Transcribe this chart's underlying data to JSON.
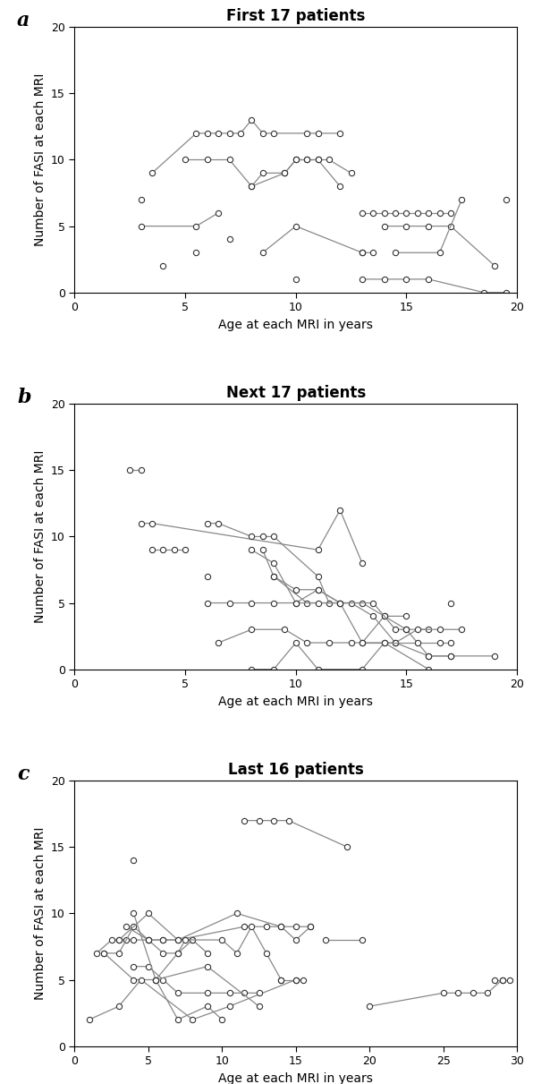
{
  "panel_a": {
    "title": "First 17 patients",
    "xlim": [
      0,
      20
    ],
    "ylim": [
      0,
      20
    ],
    "xticks": [
      0,
      5,
      10,
      15,
      20
    ],
    "yticks": [
      0,
      5,
      10,
      15,
      20
    ],
    "series": [
      {
        "x": [
          3.5,
          5.5,
          6.0,
          6.5,
          7.0,
          7.5,
          8.0,
          8.5,
          9.0,
          10.5,
          11.0,
          12.0
        ],
        "y": [
          9,
          12,
          12,
          12,
          12,
          12,
          13,
          12,
          12,
          12,
          12,
          12
        ]
      },
      {
        "x": [
          5.0,
          6.0,
          7.0,
          8.0,
          8.5,
          9.5,
          10.0,
          10.5,
          11.0,
          11.5,
          12.5
        ],
        "y": [
          10,
          10,
          10,
          8,
          9,
          9,
          10,
          10,
          10,
          10,
          9
        ]
      },
      {
        "x": [
          8.0,
          9.5,
          10.0,
          10.5,
          11.0,
          12.0
        ],
        "y": [
          8,
          9,
          10,
          10,
          10,
          8
        ]
      },
      {
        "x": [
          3.0,
          5.5,
          6.5
        ],
        "y": [
          5,
          5,
          6
        ]
      },
      {
        "x": [
          8.5,
          10.0,
          13.0,
          13.5
        ],
        "y": [
          3,
          5,
          3,
          3
        ]
      },
      {
        "x": [
          13.0,
          13.5,
          14.0,
          14.5,
          15.0,
          15.5,
          16.0,
          16.5,
          17.0
        ],
        "y": [
          6,
          6,
          6,
          6,
          6,
          6,
          6,
          6,
          6
        ]
      },
      {
        "x": [
          14.0,
          15.0,
          16.0,
          17.0,
          19.0
        ],
        "y": [
          5,
          5,
          5,
          5,
          2
        ]
      },
      {
        "x": [
          13.0,
          14.0,
          15.0,
          16.0,
          18.5,
          19.5
        ],
        "y": [
          1,
          1,
          1,
          1,
          0,
          0
        ]
      },
      {
        "x": [
          14.5,
          16.5,
          17.5
        ],
        "y": [
          3,
          3,
          7
        ]
      },
      {
        "x": [
          19.5
        ],
        "y": [
          7
        ]
      },
      {
        "x": [
          3.0
        ],
        "y": [
          7
        ]
      },
      {
        "x": [
          5.5
        ],
        "y": [
          3
        ]
      },
      {
        "x": [
          4.0
        ],
        "y": [
          2
        ]
      },
      {
        "x": [
          7.0
        ],
        "y": [
          4
        ]
      },
      {
        "x": [
          10.0
        ],
        "y": [
          1
        ]
      },
      {
        "x": [
          13.0
        ],
        "y": [
          3
        ]
      }
    ]
  },
  "panel_b": {
    "title": "Next 17 patients",
    "xlim": [
      0,
      20
    ],
    "ylim": [
      0,
      20
    ],
    "xticks": [
      0,
      5,
      10,
      15,
      20
    ],
    "yticks": [
      0,
      5,
      10,
      15,
      20
    ],
    "series": [
      {
        "x": [
          2.5,
          3.0
        ],
        "y": [
          15,
          15
        ]
      },
      {
        "x": [
          3.0,
          3.5,
          11.0,
          12.0,
          13.0
        ],
        "y": [
          11,
          11,
          9,
          12,
          8
        ]
      },
      {
        "x": [
          3.5,
          4.0,
          4.5,
          5.0
        ],
        "y": [
          9,
          9,
          9,
          9
        ]
      },
      {
        "x": [
          6.0,
          6.5,
          8.0,
          8.5,
          9.0,
          11.0,
          11.5
        ],
        "y": [
          11,
          11,
          10,
          10,
          10,
          7,
          5
        ]
      },
      {
        "x": [
          8.0,
          9.0,
          10.0,
          11.0,
          12.0,
          13.0,
          14.0,
          15.0
        ],
        "y": [
          9,
          8,
          5,
          6,
          5,
          5,
          4,
          4
        ]
      },
      {
        "x": [
          8.5,
          9.0,
          10.5,
          12.5,
          13.5,
          14.5,
          16.0,
          17.0
        ],
        "y": [
          9,
          7,
          5,
          5,
          4,
          2,
          1,
          1
        ]
      },
      {
        "x": [
          9.0,
          10.0,
          11.0,
          12.0,
          13.0,
          14.0,
          15.0,
          16.0,
          17.0,
          19.0
        ],
        "y": [
          7,
          6,
          6,
          5,
          2,
          4,
          3,
          1,
          1,
          1
        ]
      },
      {
        "x": [
          6.0,
          7.0,
          8.0,
          9.0,
          10.0,
          11.0,
          12.0,
          13.5,
          14.5,
          15.0,
          16.0
        ],
        "y": [
          5,
          5,
          5,
          5,
          5,
          5,
          5,
          5,
          3,
          3,
          3
        ]
      },
      {
        "x": [
          6.5,
          8.0,
          9.5,
          10.5,
          11.5,
          12.5,
          14.5,
          15.5,
          16.5,
          17.5
        ],
        "y": [
          2,
          3,
          3,
          2,
          2,
          2,
          2,
          3,
          3,
          3
        ]
      },
      {
        "x": [
          8.0,
          9.0,
          10.0,
          11.0,
          13.0,
          14.0,
          16.0
        ],
        "y": [
          0,
          0,
          2,
          0,
          0,
          2,
          0
        ]
      },
      {
        "x": [
          6.0
        ],
        "y": [
          7
        ]
      },
      {
        "x": [
          17.0
        ],
        "y": [
          5
        ]
      },
      {
        "x": [
          13.0,
          14.0,
          15.5,
          16.5,
          17.0
        ],
        "y": [
          2,
          2,
          2,
          2,
          2
        ]
      }
    ]
  },
  "panel_c": {
    "title": "Last 16 patients",
    "xlim": [
      0,
      30
    ],
    "ylim": [
      0,
      20
    ],
    "xticks": [
      0,
      5,
      10,
      15,
      20,
      25,
      30
    ],
    "yticks": [
      0,
      5,
      10,
      15,
      20
    ],
    "series": [
      {
        "x": [
          11.5,
          12.5,
          13.5,
          14.5,
          18.5
        ],
        "y": [
          17,
          17,
          17,
          17,
          15
        ]
      },
      {
        "x": [
          4.0
        ],
        "y": [
          14
        ]
      },
      {
        "x": [
          1.5,
          2.5,
          3.0,
          3.5,
          4.0,
          5.0,
          6.0,
          8.0
        ],
        "y": [
          7,
          8,
          8,
          8,
          8,
          8,
          8,
          8
        ]
      },
      {
        "x": [
          2.0,
          3.0,
          4.0,
          5.0,
          6.0,
          7.0,
          8.0,
          9.0
        ],
        "y": [
          7,
          7,
          9,
          8,
          7,
          7,
          8,
          7
        ]
      },
      {
        "x": [
          3.5,
          5.0,
          6.0,
          7.0,
          11.5,
          13.0,
          14.0,
          15.0,
          16.0
        ],
        "y": [
          9,
          8,
          8,
          8,
          9,
          9,
          9,
          9,
          9
        ]
      },
      {
        "x": [
          3.0,
          5.0,
          7.0,
          11.0,
          14.0,
          15.0,
          16.0
        ],
        "y": [
          8,
          10,
          8,
          10,
          9,
          8,
          9
        ]
      },
      {
        "x": [
          2.0,
          4.0,
          5.5,
          7.0,
          7.5,
          10.0,
          11.0,
          12.0,
          13.0,
          14.0
        ],
        "y": [
          7,
          5,
          5,
          7,
          8,
          8,
          7,
          9,
          7,
          5
        ]
      },
      {
        "x": [
          1.0,
          3.0,
          4.5,
          8.0,
          10.5,
          15.0,
          15.5
        ],
        "y": [
          2,
          3,
          5,
          2,
          3,
          5,
          5
        ]
      },
      {
        "x": [
          4.0,
          5.0,
          6.0,
          7.0,
          9.0,
          10.5,
          11.5,
          12.5
        ],
        "y": [
          6,
          6,
          5,
          4,
          4,
          4,
          4,
          4
        ]
      },
      {
        "x": [
          5.5,
          7.0,
          9.0,
          10.0
        ],
        "y": [
          5,
          2,
          3,
          2
        ]
      },
      {
        "x": [
          4.0,
          5.5,
          9.0,
          12.5
        ],
        "y": [
          10,
          5,
          6,
          3
        ]
      },
      {
        "x": [
          20.0,
          25.0,
          26.0,
          27.0,
          28.0,
          29.0
        ],
        "y": [
          3,
          4,
          4,
          4,
          4,
          5
        ]
      },
      {
        "x": [
          28.5,
          29.0,
          29.5
        ],
        "y": [
          5,
          5,
          5
        ]
      },
      {
        "x": [
          17.0,
          19.5
        ],
        "y": [
          8,
          8
        ]
      },
      {
        "x": [
          14.0,
          15.0
        ],
        "y": [
          5,
          5
        ]
      }
    ]
  },
  "xlabel": "Age at each MRI in years",
  "ylabel": "Number of FASI at each MRI",
  "line_color": "#888888",
  "marker_color": "white",
  "marker_edge_color": "#333333",
  "marker_size": 4.5,
  "line_width": 0.9,
  "label_fontsize": 10,
  "title_fontsize": 12,
  "panel_label_fontsize": 16,
  "tick_fontsize": 9
}
